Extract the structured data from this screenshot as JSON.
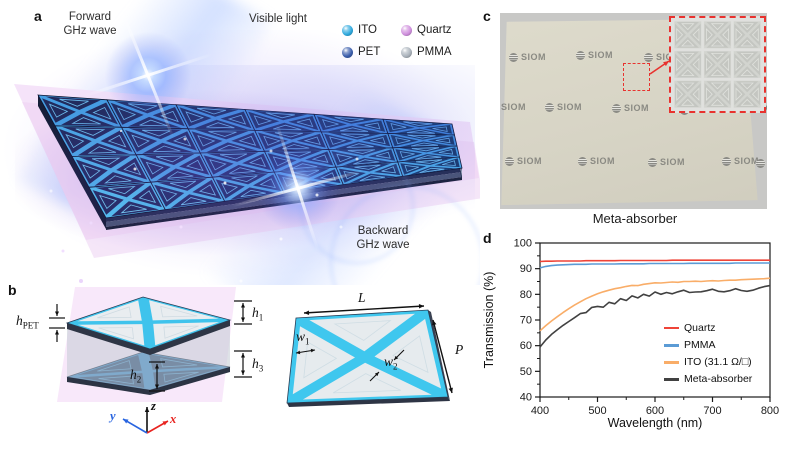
{
  "colors": {
    "accent_red": "#e8322e",
    "axis": "#1a1a1a",
    "axis_x": "#e8231f",
    "axis_y": "#2864e0",
    "axis_z": "#111111"
  },
  "panel_a": {
    "label": "a",
    "forward_wave": {
      "line1": "Forward",
      "line2": "GHz wave"
    },
    "visible_light": "Visible light",
    "backward_wave": {
      "line1": "Backward",
      "line2": "GHz wave"
    },
    "legend": [
      {
        "label": "ITO",
        "color": "#2fa9de"
      },
      {
        "label": "Quartz",
        "color": "#cf8fdd"
      },
      {
        "label": "PET",
        "color": "#3a5dab"
      },
      {
        "label": "PMMA",
        "color": "#aab2bb"
      }
    ]
  },
  "panel_b": {
    "label": "b",
    "dims": {
      "h_pet": {
        "base": "h",
        "sub": "PET"
      },
      "h1": {
        "base": "h",
        "sub": "1"
      },
      "h2": {
        "base": "h",
        "sub": "2"
      },
      "h3": {
        "base": "h",
        "sub": "3"
      },
      "L": {
        "base": "L",
        "sub": ""
      },
      "P": {
        "base": "P",
        "sub": ""
      },
      "w1": {
        "base": "w",
        "sub": "1"
      },
      "w2": {
        "base": "w",
        "sub": "2"
      }
    },
    "axes": {
      "x": "x",
      "y": "y",
      "z": "z"
    }
  },
  "panel_c": {
    "label": "c",
    "watermark": "SIOM",
    "caption": "Meta-absorber"
  },
  "panel_d": {
    "label": "d"
  },
  "chart_data": {
    "type": "line",
    "title": "",
    "xlabel": "Wavelength (nm)",
    "ylabel": "Transmission (%)",
    "xlim": [
      400,
      800
    ],
    "ylim": [
      40,
      100
    ],
    "x_ticks": [
      400,
      500,
      600,
      700,
      800
    ],
    "y_ticks": [
      40,
      50,
      60,
      70,
      80,
      90,
      100
    ],
    "grid": false,
    "legend_position": "inside bottom-right",
    "x": [
      400,
      410,
      420,
      430,
      440,
      450,
      460,
      470,
      480,
      490,
      500,
      510,
      520,
      530,
      540,
      550,
      560,
      570,
      580,
      590,
      600,
      610,
      620,
      630,
      640,
      650,
      660,
      670,
      680,
      690,
      700,
      710,
      720,
      730,
      740,
      750,
      760,
      770,
      780,
      790,
      800
    ],
    "series": [
      {
        "name": "Quartz",
        "color": "#ef4438",
        "values": [
          92.8,
          92.9,
          92.9,
          93.0,
          93.0,
          93.0,
          93.0,
          93.0,
          93.1,
          93.1,
          93.1,
          93.1,
          93.1,
          93.1,
          93.2,
          93.2,
          93.2,
          93.2,
          93.2,
          93.2,
          93.2,
          93.2,
          93.2,
          93.3,
          93.3,
          93.3,
          93.3,
          93.3,
          93.3,
          93.3,
          93.3,
          93.3,
          93.3,
          93.3,
          93.3,
          93.3,
          93.3,
          93.3,
          93.3,
          93.3,
          93.3
        ]
      },
      {
        "name": "PMMA",
        "color": "#5b9bd5",
        "values": [
          90.3,
          90.9,
          91.2,
          91.4,
          91.5,
          91.6,
          91.7,
          91.7,
          91.7,
          91.8,
          91.8,
          91.8,
          91.8,
          91.8,
          91.9,
          91.9,
          91.9,
          91.9,
          91.9,
          92.0,
          92.0,
          92.0,
          92.0,
          92.0,
          92.0,
          92.0,
          92.1,
          92.1,
          92.1,
          92.1,
          92.1,
          92.1,
          92.1,
          92.1,
          92.2,
          92.2,
          92.2,
          92.2,
          92.2,
          92.2,
          92.2
        ]
      },
      {
        "name": "ITO (31.1 Ω/□)",
        "color": "#f9ad68",
        "values": [
          65.8,
          67.8,
          69.6,
          71.3,
          72.9,
          74.4,
          75.8,
          77.1,
          78.3,
          79.3,
          80.2,
          81.0,
          81.6,
          82.2,
          82.6,
          83.1,
          83.5,
          83.4,
          83.9,
          84.2,
          84.5,
          84.4,
          84.6,
          84.8,
          84.7,
          85.0,
          85.0,
          85.1,
          85.0,
          85.2,
          85.3,
          85.2,
          85.4,
          85.5,
          85.5,
          85.7,
          85.8,
          85.9,
          86.0,
          86.1,
          86.3
        ]
      },
      {
        "name": "Meta-absorber",
        "color": "#414141",
        "values": [
          59.5,
          62.2,
          64.4,
          66.2,
          67.9,
          69.4,
          70.9,
          72.5,
          72.9,
          74.9,
          75.3,
          75.0,
          76.9,
          76.3,
          78.3,
          77.6,
          79.4,
          78.6,
          80.0,
          79.3,
          80.9,
          80.0,
          80.7,
          80.2,
          81.0,
          81.6,
          80.7,
          80.9,
          81.0,
          81.4,
          82.0,
          81.2,
          81.0,
          81.4,
          82.2,
          81.5,
          81.2,
          81.6,
          82.4,
          83.0,
          83.4
        ]
      }
    ]
  }
}
